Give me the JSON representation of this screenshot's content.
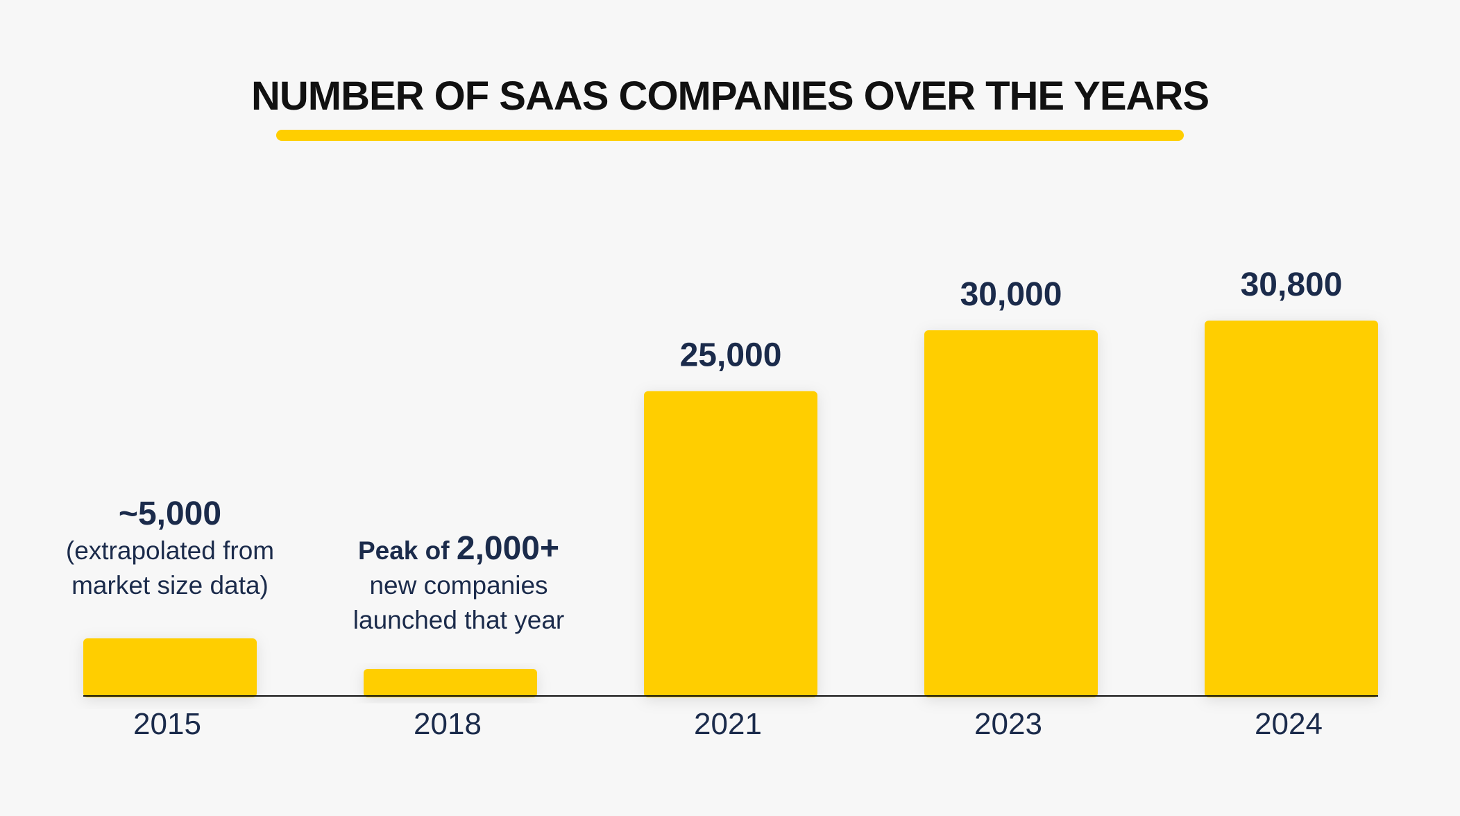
{
  "colors": {
    "background": "#f7f7f7",
    "bar": "#ffce00",
    "title": "#111111",
    "label": "#1b2b4b",
    "axis": "#111111"
  },
  "chart_data": {
    "type": "bar",
    "title": "NUMBER OF SAAS COMPANIES OVER THE YEARS",
    "xlabel": "",
    "ylabel": "",
    "ylim": [
      0,
      30800
    ],
    "grid": false,
    "categories": [
      "2015",
      "2018",
      "2021",
      "2023",
      "2024"
    ],
    "values": [
      5000,
      2000,
      25000,
      30000,
      30800
    ],
    "data_labels": [
      "~5,000",
      "",
      "25,000",
      "30,000",
      "30,800"
    ],
    "annotations": {
      "2015": {
        "value_label": "~5,000",
        "note_lines": [
          "(extrapolated from",
          "market size data)"
        ]
      },
      "2018": {
        "prefix": "Peak of ",
        "value_label": "2,000+",
        "note_lines": [
          "new companies",
          "launched that year"
        ]
      }
    }
  }
}
